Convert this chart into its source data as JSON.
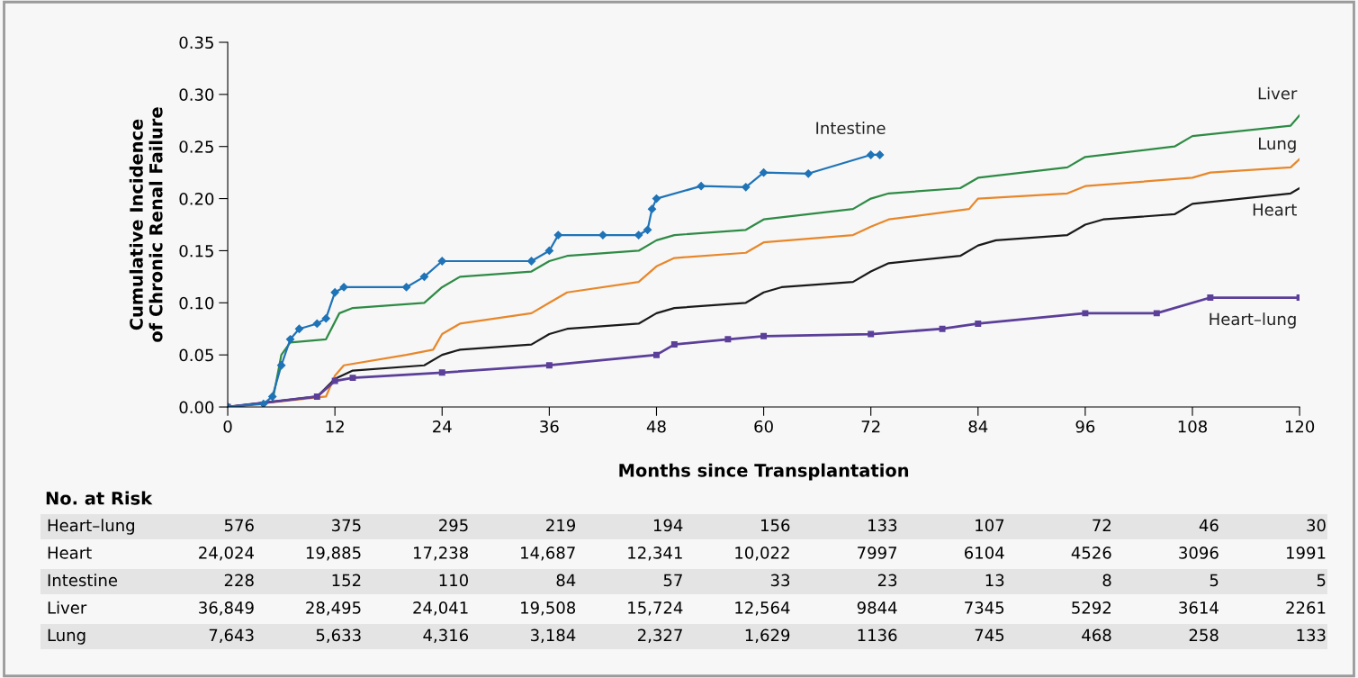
{
  "chart_data": {
    "type": "line",
    "xlabel": "Months since Transplantation",
    "ylabel": "Cumulative Incidence\nof Chronic Renal Failure",
    "xlim": [
      0,
      120
    ],
    "xticks": [
      0,
      12,
      24,
      36,
      48,
      60,
      72,
      84,
      96,
      108,
      120
    ],
    "ylim": [
      0,
      0.35
    ],
    "yticks": [
      {
        "value": 0,
        "label": "0.00"
      },
      {
        "value": 0.05,
        "label": "0.05"
      },
      {
        "value": 0.1,
        "label": "0.10"
      },
      {
        "value": 0.15,
        "label": "0.15"
      },
      {
        "value": 0.2,
        "label": "0.20"
      },
      {
        "value": 0.25,
        "label": "0.25"
      },
      {
        "value": 0.3,
        "label": "0.30"
      },
      {
        "value": 0.35,
        "label": "0.35"
      }
    ],
    "grid": false,
    "legend": false,
    "line_style": "solid",
    "series": [
      {
        "name": "Liver",
        "color": "#2e8b45",
        "marker": "none",
        "x": [
          0,
          5,
          6,
          7,
          11,
          12.5,
          14,
          22,
          24,
          26,
          34,
          36,
          38,
          46,
          48,
          50,
          58,
          60,
          70,
          72,
          74,
          82,
          84,
          94,
          96,
          106,
          108,
          119,
          120
        ],
        "values": [
          0,
          0.005,
          0.05,
          0.062,
          0.065,
          0.09,
          0.095,
          0.1,
          0.115,
          0.125,
          0.13,
          0.14,
          0.145,
          0.15,
          0.16,
          0.165,
          0.17,
          0.18,
          0.19,
          0.2,
          0.205,
          0.21,
          0.22,
          0.23,
          0.24,
          0.25,
          0.26,
          0.27,
          0.28
        ]
      },
      {
        "name": "Lung",
        "color": "#e8872a",
        "marker": "none",
        "x": [
          0,
          11,
          12,
          13,
          20,
          23,
          24,
          26,
          34,
          36,
          38,
          46,
          48,
          50,
          58,
          60,
          70,
          72,
          74,
          83,
          84,
          94,
          96,
          108,
          110,
          119,
          120
        ],
        "values": [
          0,
          0.01,
          0.03,
          0.04,
          0.05,
          0.055,
          0.07,
          0.08,
          0.09,
          0.1,
          0.11,
          0.12,
          0.135,
          0.143,
          0.148,
          0.158,
          0.165,
          0.173,
          0.18,
          0.19,
          0.2,
          0.205,
          0.212,
          0.22,
          0.225,
          0.23,
          0.238
        ]
      },
      {
        "name": "Heart",
        "color": "#1a1a1a",
        "marker": "none",
        "x": [
          0,
          10,
          12,
          14,
          22,
          24,
          26,
          34,
          36,
          38,
          46,
          48,
          50,
          58,
          60,
          62,
          70,
          72,
          74,
          82,
          84,
          86,
          94,
          96,
          98,
          106,
          108,
          119,
          120
        ],
        "values": [
          0,
          0.01,
          0.027,
          0.035,
          0.04,
          0.05,
          0.055,
          0.06,
          0.07,
          0.075,
          0.08,
          0.09,
          0.095,
          0.1,
          0.11,
          0.115,
          0.12,
          0.13,
          0.138,
          0.145,
          0.155,
          0.16,
          0.165,
          0.175,
          0.18,
          0.185,
          0.195,
          0.205,
          0.21
        ]
      },
      {
        "name": "Heart–lung",
        "color": "#5b3f99",
        "marker": "square",
        "x": [
          0,
          10,
          12,
          14,
          24,
          36,
          48,
          50,
          56,
          60,
          72,
          80,
          84,
          96,
          104,
          110,
          120
        ],
        "values": [
          0,
          0.01,
          0.025,
          0.028,
          0.033,
          0.04,
          0.05,
          0.06,
          0.065,
          0.068,
          0.07,
          0.075,
          0.08,
          0.09,
          0.09,
          0.105,
          0.105
        ]
      },
      {
        "name": "Intestine",
        "color": "#1f73b7",
        "marker": "diamond",
        "x": [
          0,
          4,
          5,
          6,
          7,
          8,
          10,
          11,
          12,
          13,
          20,
          22,
          24,
          34,
          36,
          37,
          42,
          46,
          47,
          47.5,
          48,
          53,
          58,
          60,
          65,
          72,
          73
        ],
        "values": [
          0,
          0.003,
          0.01,
          0.04,
          0.065,
          0.075,
          0.08,
          0.085,
          0.11,
          0.115,
          0.115,
          0.125,
          0.14,
          0.14,
          0.15,
          0.165,
          0.165,
          0.165,
          0.17,
          0.19,
          0.2,
          0.212,
          0.211,
          0.225,
          0.224,
          0.242,
          0.242
        ]
      }
    ],
    "annotations": [
      "No. at Risk",
      "Heart–lung",
      "576",
      "375",
      "295",
      "219",
      "194",
      "156",
      "133",
      "107",
      "72",
      "46",
      "30",
      "Heart",
      "24,024",
      "19,885",
      "17,238",
      "14,687",
      "12,341",
      "10,022",
      "7997",
      "6104",
      "4526",
      "3096",
      "1991",
      "Intestine",
      "228",
      "152",
      "110",
      "84",
      "57",
      "33",
      "23",
      "13",
      "8",
      "5",
      "5",
      "Liver",
      "36,849",
      "28,495",
      "24,041",
      "19,508",
      "15,724",
      "12,564",
      "9844",
      "7345",
      "5292",
      "3614",
      "2261",
      "Lung",
      "7,643",
      "5,633",
      "4,316",
      "3,184",
      "2,327",
      "1,629",
      "1136",
      "745",
      "468",
      "258",
      "133"
    ]
  }
}
